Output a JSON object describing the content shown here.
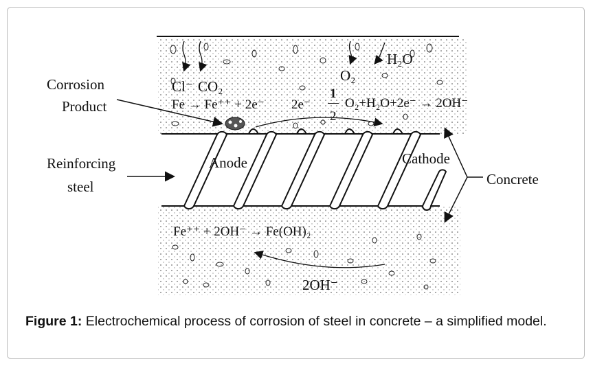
{
  "diagram": {
    "labels": {
      "corrosion_product_line1": "Corrosion",
      "corrosion_product_line2": "Product",
      "reinforcing_steel_line1": "Reinforcing",
      "reinforcing_steel_line2": "steel",
      "anode": "Anode",
      "cathode": "Cathode",
      "concrete": "Concrete",
      "h2o": "H₂O",
      "o2": "O₂",
      "cl": "Cl⁻",
      "co2": "CO₂",
      "electrons": "2e⁻",
      "hydroxide_flow": "2OH⁻"
    },
    "equations": {
      "anodic": "Fe → Fe⁺⁺ + 2e⁻",
      "cathodic_fraction_num": "1",
      "cathodic_fraction_den": "2",
      "cathodic": "O₂+H₂O+2e⁻ → 2OH⁻",
      "precipitation": "Fe⁺⁺ + 2OH⁻ → Fe(OH)₂"
    }
  },
  "caption": {
    "prefix": "Figure 1:",
    "text": "Electrochemical process of corrosion of steel in concrete – a simplified model."
  }
}
